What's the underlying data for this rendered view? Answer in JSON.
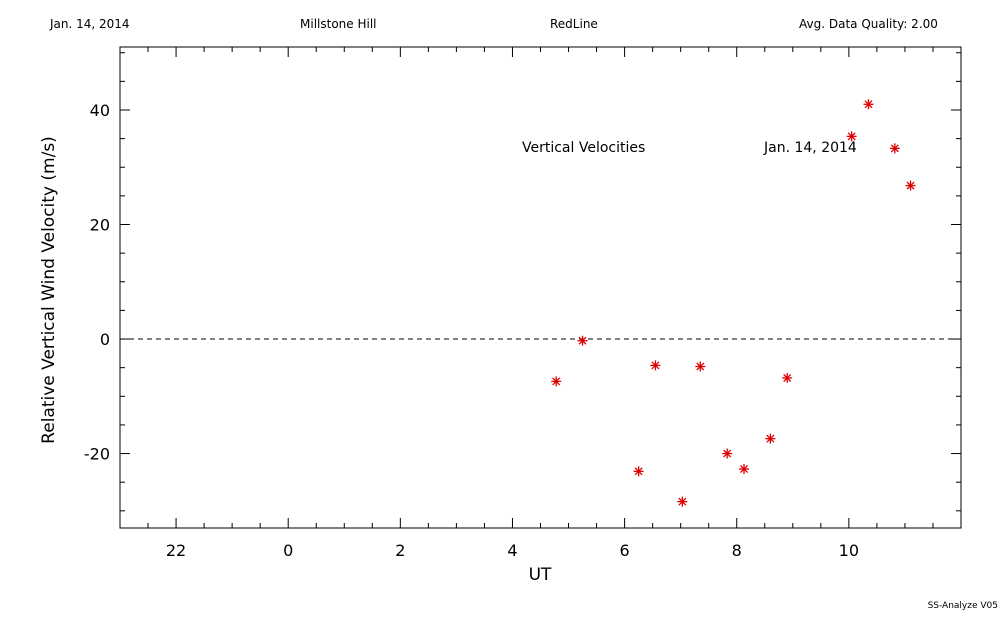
{
  "header": {
    "date": "Jan. 14, 2014",
    "site": "Millstone Hill",
    "line": "RedLine",
    "quality": "Avg. Data Quality: 2.00"
  },
  "footer": {
    "version": "SS-Analyze V05"
  },
  "chart_data": {
    "type": "scatter",
    "xlabel": "UT",
    "ylabel": "Relative Vertical Wind Velocity (m/s)",
    "x_ticks": [
      22,
      0,
      2,
      4,
      6,
      8,
      10
    ],
    "y_ticks": [
      -20,
      0,
      20,
      40
    ],
    "xlim": [
      21,
      36
    ],
    "ylim": [
      -33,
      51
    ],
    "annotations": [
      "Vertical Velocities",
      "Jan. 14, 2014"
    ],
    "reference_line": {
      "y": 0,
      "style": "dashed"
    },
    "marker_color": "#dd0000",
    "marker": "asterisk",
    "series": [
      {
        "x": [
          28.78,
          29.25,
          30.25,
          30.55,
          31.03,
          31.35,
          31.83,
          32.13,
          32.6,
          32.9,
          34.05,
          34.35,
          34.82,
          35.1
        ],
        "y": [
          -7.4,
          -0.3,
          -23.1,
          -4.6,
          -28.4,
          -4.8,
          -20.0,
          -22.7,
          -17.4,
          -6.8,
          35.4,
          41.0,
          33.3,
          26.8
        ]
      }
    ]
  }
}
